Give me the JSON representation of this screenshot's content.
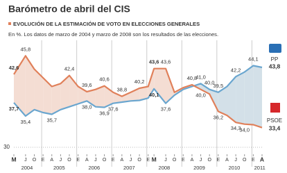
{
  "chart_data": {
    "type": "line",
    "title": "Barómetro de abril del CIS",
    "subtitle": "EVOLUCIÓN DE LA ESTIMACIÓN DE VOTO EN ELECCIONES GENERALES",
    "note": "En %. Los datos de marzo de 2004 y marzo de 2008 son los resultados de las elecciones.",
    "x": [
      "2004-03",
      "2004-07",
      "2004-10",
      "2005-01",
      "2005-04",
      "2005-07",
      "2005-10",
      "2006-01",
      "2006-04",
      "2006-07",
      "2006-10",
      "2007-01",
      "2007-04",
      "2007-07",
      "2007-10",
      "2008-01",
      "2008-03",
      "2008-07",
      "2008-10",
      "2009-01",
      "2009-04",
      "2009-07",
      "2009-10",
      "2010-01",
      "2010-04",
      "2010-07",
      "2010-10",
      "2011-01",
      "2011-04"
    ],
    "series": [
      {
        "name": "PP",
        "color": "#6aa6cf",
        "values": [
          37.7,
          35.4,
          36.5,
          36.0,
          35.7,
          36.5,
          37.0,
          37.5,
          38.0,
          37.0,
          36.9,
          37.6,
          37.8,
          38.0,
          38.1,
          38.5,
          40.1,
          37.6,
          39.0,
          40.0,
          40.5,
          41.0,
          40.0,
          39.5,
          40.5,
          42.2,
          43.0,
          44.1,
          43.8
        ],
        "value_labels": [
          "37,7",
          "35,4",
          null,
          null,
          "35,7",
          null,
          null,
          null,
          "38,0",
          null,
          "36,9",
          "37,6",
          null,
          null,
          null,
          null,
          "40,1",
          "37,6",
          null,
          null,
          null,
          "41,0",
          "40,0",
          "39,5",
          null,
          "42,2",
          null,
          "44,1",
          "43,8"
        ]
      },
      {
        "name": "PSOE",
        "color": "#e0805a",
        "values": [
          42.6,
          45.8,
          43.5,
          42.0,
          40.5,
          41.0,
          42.4,
          40.5,
          39.6,
          40.0,
          40.6,
          39.5,
          38.8,
          39.5,
          40.2,
          40.5,
          43.6,
          43.6,
          39.5,
          40.3,
          40.8,
          40.0,
          39.2,
          36.2,
          35.5,
          34.3,
          34.0,
          33.9,
          33.4
        ],
        "value_labels": [
          "42,6",
          "45,8",
          null,
          null,
          null,
          null,
          "42,4",
          null,
          "39,6",
          null,
          "40,6",
          null,
          "38,8",
          null,
          "40,2",
          null,
          "43,6",
          "43,6",
          null,
          null,
          "40,8",
          "40,0",
          null,
          "36,2",
          null,
          "34,3",
          "34,0",
          null,
          "33,4"
        ]
      }
    ],
    "ylim": [
      30,
      48
    ],
    "yticks": [
      30
    ],
    "xticks": [
      {
        "value": "2004-03",
        "label": "M"
      },
      {
        "value": "2004-07",
        "label": "J"
      },
      {
        "value": "2004-10",
        "label": "O"
      },
      {
        "value": "2005-01",
        "label": "E"
      },
      {
        "value": "2005-04",
        "label": "A"
      },
      {
        "value": "2005-07",
        "label": "J"
      },
      {
        "value": "2005-10",
        "label": "O"
      },
      {
        "value": "2006-01",
        "label": "E"
      },
      {
        "value": "2006-04",
        "label": "A"
      },
      {
        "value": "2006-07",
        "label": "J"
      },
      {
        "value": "2006-10",
        "label": "O"
      },
      {
        "value": "2007-01",
        "label": "E"
      },
      {
        "value": "2007-04",
        "label": "A"
      },
      {
        "value": "2007-07",
        "label": "J"
      },
      {
        "value": "2007-10",
        "label": "O"
      },
      {
        "value": "2008-01",
        "label": "E"
      },
      {
        "value": "2008-03",
        "label": "M"
      },
      {
        "value": "2008-07",
        "label": "J"
      },
      {
        "value": "2008-10",
        "label": "O"
      },
      {
        "value": "2009-01",
        "label": "E"
      },
      {
        "value": "2009-04",
        "label": "A"
      },
      {
        "value": "2009-07",
        "label": "J"
      },
      {
        "value": "2009-10",
        "label": "O"
      },
      {
        "value": "2010-01",
        "label": "E"
      },
      {
        "value": "2010-04",
        "label": "A"
      },
      {
        "value": "2010-07",
        "label": "J"
      },
      {
        "value": "2010-10",
        "label": "O"
      },
      {
        "value": "2011-01",
        "label": "E"
      },
      {
        "value": "2011-04",
        "label": "A"
      }
    ],
    "years": [
      2004,
      2005,
      2006,
      2007,
      2008,
      2009,
      2010,
      2011
    ],
    "grid": true
  }
}
